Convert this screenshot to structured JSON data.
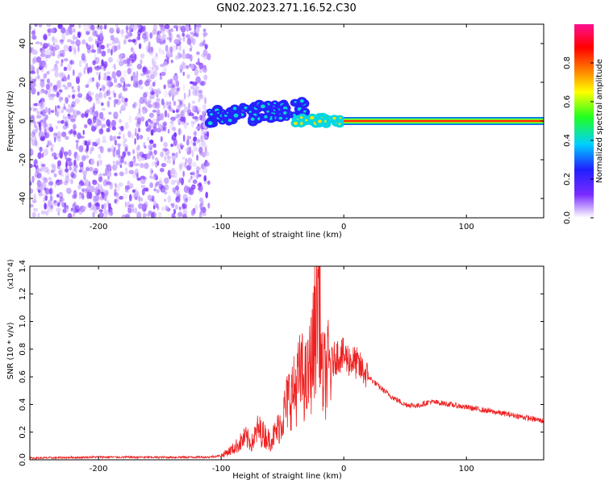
{
  "figure": {
    "title": "GN02.2023.271.16.52.C30"
  },
  "chart_data": [
    {
      "type": "heatmap",
      "xlabel": "Height of straight line (km)",
      "ylabel": "Frequency (Hz)",
      "xlim": [
        -256,
        163
      ],
      "ylim": [
        -50,
        50
      ],
      "x_ticks": [
        -200,
        -100,
        0,
        100
      ],
      "y_ticks": [
        -40,
        -20,
        0,
        20,
        40
      ],
      "colorbar": {
        "label": "Normalized spectral amplitude",
        "range": [
          0,
          1
        ],
        "ticks": [
          0.0,
          0.2,
          0.4,
          0.6,
          0.8
        ],
        "tick_labels": [
          "0.0",
          "0.2",
          "0.4",
          "0.6",
          "0.8"
        ],
        "colormap": [
          "#ffffff",
          "#7a2bff",
          "#2020ff",
          "#00d0ff",
          "#20ff20",
          "#ffff00",
          "#ff8000",
          "#ff0000",
          "#ff1090"
        ]
      },
      "regions": [
        {
          "x": [
            -256,
            -110
          ],
          "y": [
            -50,
            50
          ],
          "amplitude": 0.1,
          "pattern": "noise"
        },
        {
          "x": [
            -110,
            -30
          ],
          "y": [
            -6,
            12
          ],
          "amplitude": 0.4,
          "pattern": "scattered blobs"
        },
        {
          "x": [
            -40,
            0
          ],
          "y": [
            -3,
            4
          ],
          "amplitude": 0.65,
          "pattern": "wavy trace"
        },
        {
          "x": [
            0,
            163
          ],
          "y": [
            -2,
            2
          ],
          "amplitude": 0.85,
          "pattern": "steady line at 0 Hz"
        }
      ]
    },
    {
      "type": "line",
      "xlabel": "Height of straight line (km)",
      "ylabel": "SNR (10 * v/v)",
      "exponent_label": "(x10^4)",
      "xlim": [
        -256,
        163
      ],
      "ylim": [
        0,
        1.4
      ],
      "x_ticks": [
        -200,
        -100,
        0,
        100
      ],
      "y_ticks": [
        0.0,
        0.2,
        0.4,
        0.6,
        0.8,
        1.0,
        1.2,
        1.4
      ],
      "y_tick_labels": [
        "0.0",
        "0.2",
        "0.4",
        "0.6",
        "0.8",
        "1.0",
        "1.2",
        "1.4"
      ],
      "series": [
        {
          "color": "#ee2222",
          "x": [
            -256,
            -200,
            -150,
            -110,
            -100,
            -90,
            -85,
            -80,
            -75,
            -70,
            -65,
            -60,
            -55,
            -50,
            -45,
            -40,
            -35,
            -30,
            -25,
            -20,
            -18,
            -15,
            -10,
            -5,
            0,
            5,
            10,
            15,
            20,
            30,
            40,
            50,
            60,
            70,
            80,
            100,
            120,
            140,
            163
          ],
          "y": [
            0.012,
            0.02,
            0.018,
            0.02,
            0.03,
            0.08,
            0.12,
            0.16,
            0.12,
            0.22,
            0.18,
            0.14,
            0.2,
            0.3,
            0.45,
            0.5,
            0.62,
            0.55,
            0.8,
            1.32,
            0.6,
            0.62,
            0.7,
            0.76,
            0.75,
            0.72,
            0.7,
            0.65,
            0.6,
            0.52,
            0.45,
            0.4,
            0.39,
            0.42,
            0.41,
            0.38,
            0.35,
            0.32,
            0.28
          ]
        }
      ]
    }
  ]
}
